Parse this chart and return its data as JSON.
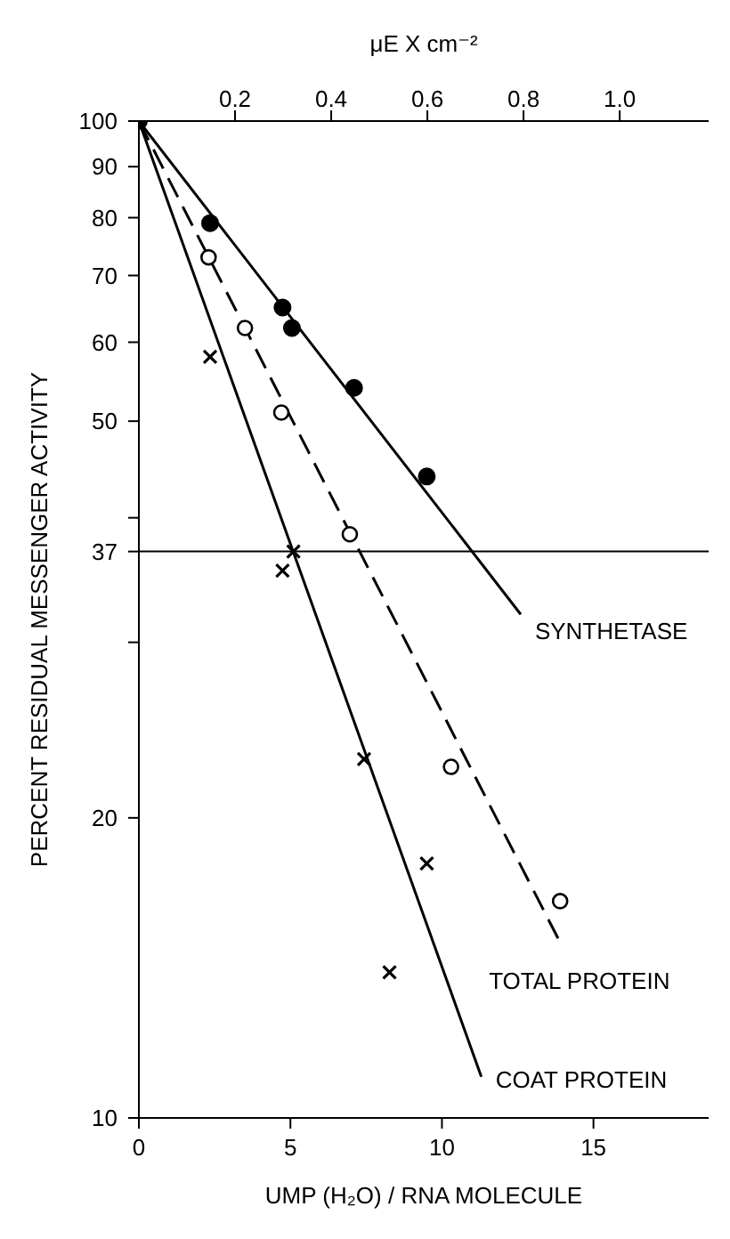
{
  "chart_data": {
    "type": "scatter",
    "xlabel": "UMP (H₂O) / RNA MOLECULE",
    "ylabel": "PERCENT RESIDUAL MESSENGER ACTIVITY",
    "x2label": "μE X cm⁻²",
    "xlim": [
      0,
      18.8
    ],
    "xticks": [
      0,
      5,
      10,
      15
    ],
    "x2lim": [
      0,
      1.185
    ],
    "x2ticks": [
      {
        "value": 0.2,
        "label": "0.2"
      },
      {
        "value": 0.4,
        "label": "0.4"
      },
      {
        "value": 0.6,
        "label": "0.6"
      },
      {
        "value": 0.8,
        "label": "0.8"
      },
      {
        "value": 1,
        "label": "1.0"
      }
    ],
    "ylim": [
      10,
      100
    ],
    "yticks": [
      10,
      20,
      {
        "value": 30,
        "label": null
      },
      37,
      {
        "value": 40,
        "label": null
      },
      50,
      60,
      70,
      80,
      90,
      100
    ],
    "log": "y",
    "grid": false,
    "legend": false,
    "ref_lines": [
      {
        "axis": "y",
        "value": 37,
        "color": "#000000"
      }
    ],
    "series": [
      {
        "marker": "circle",
        "color": "#000000",
        "x": [
          0,
          2.35,
          4.74,
          5.05,
          7.1,
          9.5
        ],
        "values": [
          100,
          79,
          65,
          62,
          54,
          44
        ]
      },
      {
        "marker": "circle-open",
        "color": "#000000",
        "x": [
          2.3,
          3.5,
          4.7,
          6.96,
          10.3,
          13.9
        ],
        "values": [
          73,
          62,
          51,
          38.5,
          22.5,
          16.5
        ]
      },
      {
        "marker": "cross",
        "color": "#000000",
        "x": [
          2.35,
          4.74,
          5.1,
          7.43,
          9.5,
          8.27
        ],
        "values": [
          58,
          35.4,
          37,
          22.9,
          18,
          14
        ]
      },
      {
        "type": "line",
        "name": "SYNTHETASE",
        "color": "#000000",
        "line_style": "solid",
        "marker": "none",
        "x": [
          0,
          12.6
        ],
        "values": [
          100,
          32
        ]
      },
      {
        "type": "line",
        "name": "TOTAL PROTEIN",
        "color": "#000000",
        "line_style": "dashed",
        "marker": "none",
        "x": [
          0,
          13.9
        ],
        "values": [
          100,
          15
        ]
      },
      {
        "type": "line",
        "name": "COAT PROTEIN",
        "color": "#000000",
        "line_style": "solid",
        "marker": "none",
        "x": [
          0,
          11.3
        ],
        "values": [
          100,
          11
        ]
      }
    ]
  }
}
